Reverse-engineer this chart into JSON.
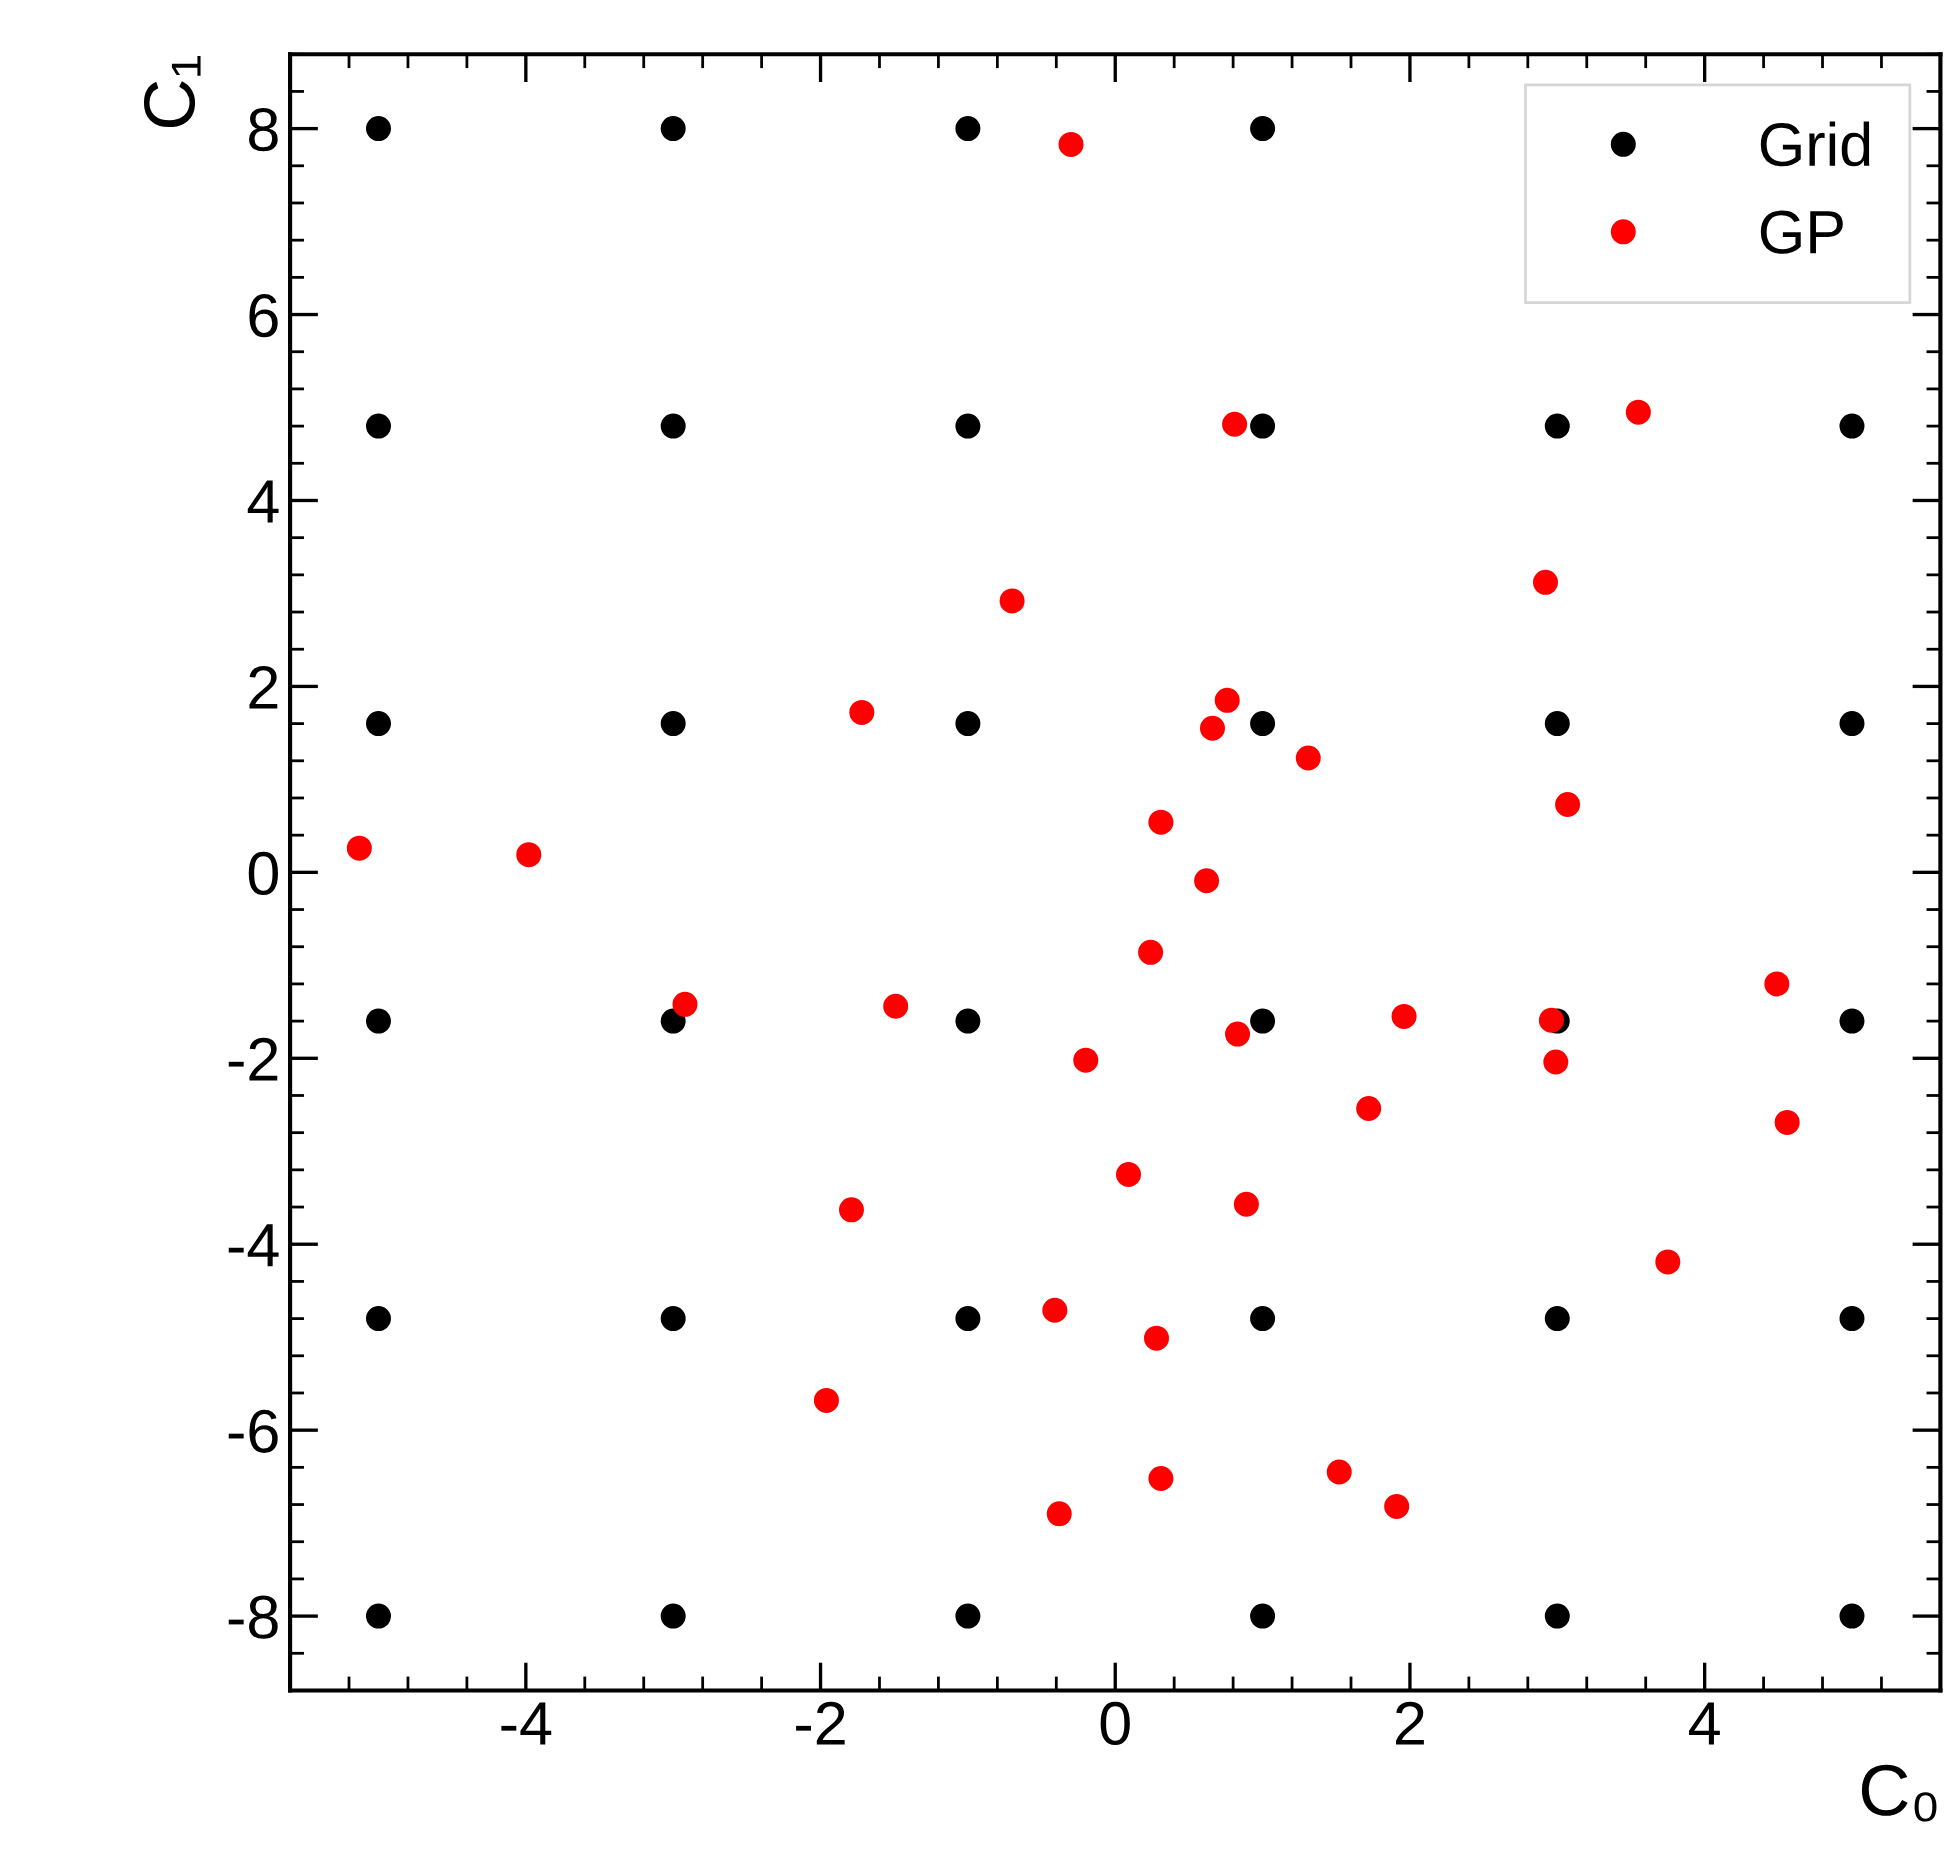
{
  "chart_data": {
    "type": "scatter",
    "xlabel": "C₀",
    "ylabel": "C₁",
    "xlim": [
      -5.6,
      5.6
    ],
    "ylim": [
      -8.8,
      8.8
    ],
    "xticks": [
      -4,
      -2,
      0,
      2,
      4
    ],
    "yticks": [
      -8,
      -6,
      -4,
      -2,
      0,
      2,
      4,
      6,
      8
    ],
    "grid": false,
    "legend": "top right",
    "marker": "circle",
    "series": [
      {
        "name": "Grid",
        "color": "#000000",
        "x": [
          -5,
          -3,
          -1,
          1,
          -5,
          -3,
          -1,
          1,
          3,
          5,
          -5,
          -3,
          -1,
          1,
          3,
          5,
          -5,
          -3,
          -1,
          1,
          3,
          5,
          -5,
          -3,
          -1,
          1,
          3,
          5,
          -5,
          -3,
          -1,
          1,
          3,
          5
        ],
        "values": [
          8,
          8,
          8,
          8,
          4.8,
          4.8,
          4.8,
          4.8,
          4.8,
          4.8,
          1.6,
          1.6,
          1.6,
          1.6,
          1.6,
          1.6,
          -1.6,
          -1.6,
          -1.6,
          -1.6,
          -1.6,
          -1.6,
          -4.8,
          -4.8,
          -4.8,
          -4.8,
          -4.8,
          -4.8,
          -8,
          -8,
          -8,
          -8,
          -8,
          -8
        ]
      },
      {
        "name": "GP",
        "color": "#ff0000",
        "x": [
          -5.13,
          -3.98,
          -2.92,
          -1.72,
          -1.49,
          -1.79,
          -1.96,
          -0.7,
          -0.3,
          -0.2,
          -0.41,
          -0.38,
          0.09,
          0.24,
          0.31,
          0.28,
          0.31,
          0.62,
          0.66,
          0.76,
          0.81,
          0.83,
          0.89,
          1.31,
          1.72,
          1.96,
          1.52,
          1.91,
          2.92,
          3.07,
          2.96,
          2.99,
          3.55,
          3.75,
          4.49,
          4.56
        ],
        "values": [
          0.26,
          0.19,
          -1.42,
          1.72,
          -1.44,
          -3.63,
          -5.68,
          2.92,
          7.83,
          -2.02,
          -4.71,
          -6.9,
          -3.25,
          -0.86,
          0.54,
          -5.01,
          -6.52,
          -0.09,
          1.55,
          1.85,
          4.82,
          -1.74,
          -3.57,
          1.23,
          -2.54,
          -1.55,
          -6.45,
          -6.82,
          3.12,
          0.73,
          -1.59,
          -2.04,
          4.95,
          -4.19,
          -1.2,
          -2.69
        ]
      }
    ]
  }
}
